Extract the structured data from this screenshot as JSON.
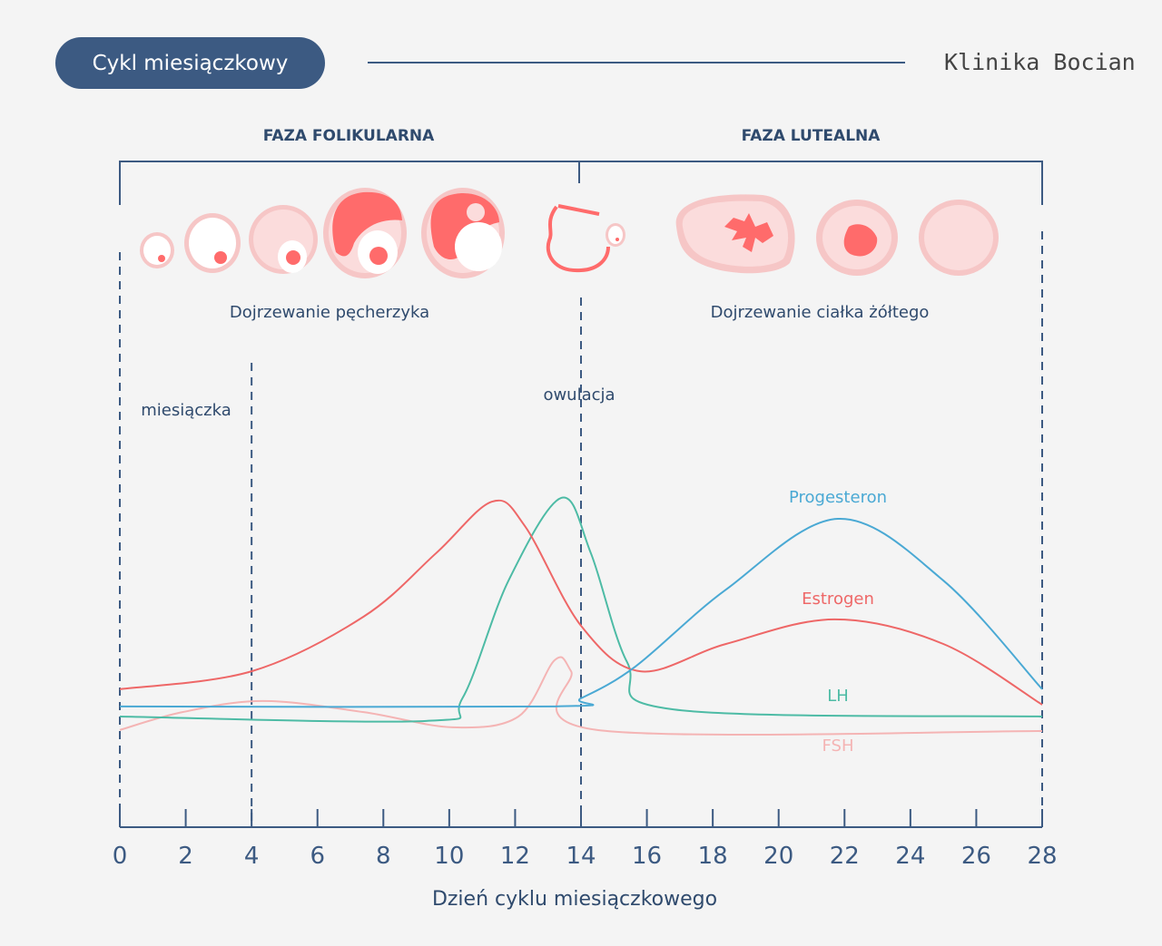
{
  "header": {
    "title": "Cykl miesiączkowy",
    "brand": "Klinika Bocian"
  },
  "phases": {
    "follicular": "FAZA FOLIKULARNA",
    "luteal": "FAZA LUTEALNA"
  },
  "stages": {
    "follicle_maturation": "Dojrzewanie pęcherzyka",
    "corpus_luteum_maturation": "Dojrzewanie ciałka żółtego"
  },
  "annotations": {
    "menstruation": "miesiączka",
    "ovulation": "owulacja"
  },
  "colors": {
    "navy": "#3c5a82",
    "progesteron": "#4aa9d4",
    "estrogen": "#ee6767",
    "lh": "#4dbba5",
    "fsh": "#f4b4b4",
    "follicle": "#ff6b6b"
  },
  "chart_data": {
    "type": "line",
    "xlabel": "Dzień cyklu miesiączkowego",
    "ylabel": "",
    "xlim": [
      0,
      28
    ],
    "xticks": [
      0,
      2,
      4,
      6,
      8,
      10,
      12,
      14,
      16,
      18,
      20,
      22,
      24,
      26,
      28
    ],
    "ylim": [
      0,
      100
    ],
    "grid": false,
    "series": [
      {
        "name": "Progesteron",
        "color": "#4aa9d4",
        "points": [
          [
            0,
            35.8
          ],
          [
            13.2,
            35.8
          ],
          [
            14,
            38.2
          ],
          [
            15.65,
            47.6
          ],
          [
            18.4,
            70.4
          ],
          [
            21.8,
            91.4
          ],
          [
            25,
            73.1
          ],
          [
            28,
            40.9
          ]
        ]
      },
      {
        "name": "Estrogen",
        "color": "#ee6767",
        "points": [
          [
            0,
            40.9
          ],
          [
            4,
            46.2
          ],
          [
            7.4,
            62.4
          ],
          [
            9.6,
            81.2
          ],
          [
            11.3,
            96.5
          ],
          [
            12.3,
            89.2
          ],
          [
            14,
            59.7
          ],
          [
            15.8,
            46.2
          ],
          [
            18.4,
            54.3
          ],
          [
            21.7,
            61.6
          ],
          [
            25,
            54.3
          ],
          [
            28,
            36.3
          ]
        ]
      },
      {
        "name": "LH",
        "color": "#4dbba5",
        "points": [
          [
            0,
            32.8
          ],
          [
            9.3,
            31.5
          ],
          [
            10.4,
            38.2
          ],
          [
            11.8,
            73.1
          ],
          [
            13.4,
            97.6
          ],
          [
            14.3,
            81.2
          ],
          [
            15.4,
            48.9
          ],
          [
            16.8,
            34.9
          ],
          [
            28,
            32.8
          ]
        ]
      },
      {
        "name": "FSH",
        "color": "#f4b4b4",
        "points": [
          [
            0,
            28.8
          ],
          [
            1.9,
            34.1
          ],
          [
            4.35,
            37.4
          ],
          [
            7.4,
            34.1
          ],
          [
            10.1,
            29.6
          ],
          [
            12.1,
            32.8
          ],
          [
            13.2,
            49.5
          ],
          [
            13.7,
            46.2
          ],
          [
            14.5,
            28.8
          ],
          [
            28,
            28.5
          ]
        ]
      }
    ],
    "markers": [
      {
        "day": 0
      },
      {
        "day": 4
      },
      {
        "day": 14
      },
      {
        "day": 28
      }
    ]
  }
}
